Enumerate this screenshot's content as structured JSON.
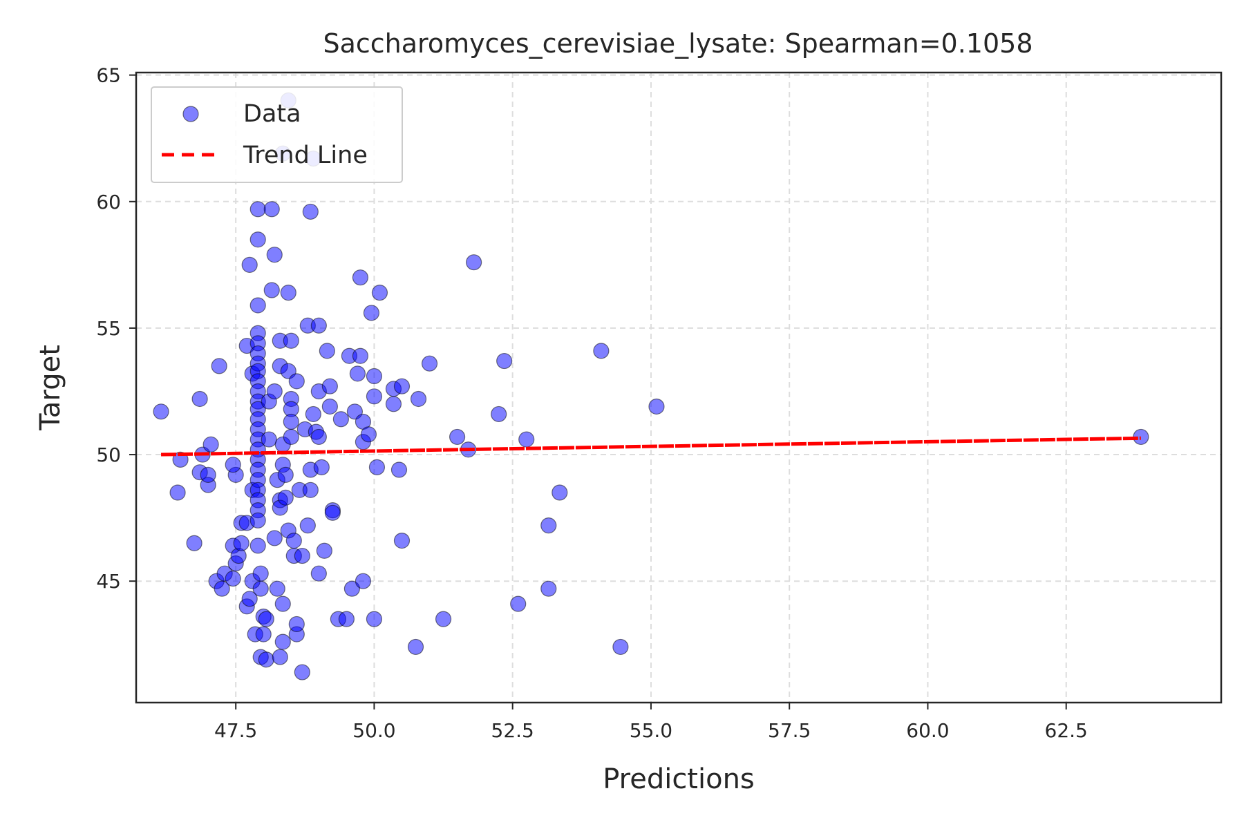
{
  "chart_data": {
    "type": "scatter",
    "title": "Saccharomyces_cerevisiae_lysate: Spearman=0.1058",
    "xlabel": "Predictions",
    "ylabel": "Target",
    "xlim": [
      45.7,
      65.3
    ],
    "ylim": [
      40.2,
      65.1
    ],
    "x_ticks": [
      "47.5",
      "50.0",
      "52.5",
      "55.0",
      "57.5",
      "60.0",
      "62.5"
    ],
    "y_ticks": [
      "45",
      "50",
      "55",
      "60",
      "65"
    ],
    "grid": true,
    "legend_position": "top-left",
    "legend": [
      "Data",
      "Trend Line"
    ],
    "colors": {
      "points": "#0000ff",
      "point_edge": "#000000",
      "trend_line": "#ff0000",
      "grid": "#dddddd",
      "axes": "#262626"
    },
    "trend_line": {
      "x": [
        46.15,
        63.85
      ],
      "y": [
        50.0,
        50.65
      ],
      "style": "dashed"
    },
    "series": [
      {
        "name": "Data",
        "points": [
          [
            46.15,
            51.7
          ],
          [
            46.5,
            49.8
          ],
          [
            46.45,
            48.5
          ],
          [
            46.75,
            46.5
          ],
          [
            46.85,
            52.2
          ],
          [
            46.9,
            50.0
          ],
          [
            46.85,
            49.3
          ],
          [
            47.0,
            48.8
          ],
          [
            47.0,
            49.2
          ],
          [
            47.05,
            50.4
          ],
          [
            47.15,
            45.0
          ],
          [
            47.2,
            53.5
          ],
          [
            47.25,
            44.7
          ],
          [
            47.3,
            45.3
          ],
          [
            47.45,
            45.1
          ],
          [
            47.45,
            46.4
          ],
          [
            47.5,
            45.7
          ],
          [
            47.5,
            49.2
          ],
          [
            47.45,
            49.6
          ],
          [
            47.55,
            46.0
          ],
          [
            47.6,
            47.3
          ],
          [
            47.6,
            46.5
          ],
          [
            47.7,
            47.3
          ],
          [
            47.7,
            44.0
          ],
          [
            47.75,
            44.3
          ],
          [
            47.75,
            57.5
          ],
          [
            47.7,
            54.3
          ],
          [
            47.8,
            53.2
          ],
          [
            47.8,
            45.0
          ],
          [
            47.8,
            48.6
          ],
          [
            47.85,
            42.9
          ],
          [
            47.9,
            59.7
          ],
          [
            47.9,
            58.5
          ],
          [
            47.9,
            55.9
          ],
          [
            47.9,
            54.8
          ],
          [
            47.9,
            54.4
          ],
          [
            47.9,
            54.0
          ],
          [
            47.9,
            53.6
          ],
          [
            47.9,
            53.3
          ],
          [
            47.9,
            52.9
          ],
          [
            47.9,
            52.5
          ],
          [
            47.9,
            52.1
          ],
          [
            47.9,
            51.8
          ],
          [
            47.9,
            51.4
          ],
          [
            47.9,
            51.0
          ],
          [
            47.9,
            50.6
          ],
          [
            47.9,
            50.2
          ],
          [
            47.9,
            49.8
          ],
          [
            47.9,
            49.4
          ],
          [
            47.9,
            49.0
          ],
          [
            47.9,
            48.6
          ],
          [
            47.9,
            48.2
          ],
          [
            47.9,
            47.8
          ],
          [
            47.9,
            47.4
          ],
          [
            47.9,
            46.4
          ],
          [
            47.95,
            45.3
          ],
          [
            47.95,
            44.7
          ],
          [
            47.95,
            42.0
          ],
          [
            48.0,
            43.6
          ],
          [
            48.0,
            42.9
          ],
          [
            48.05,
            41.9
          ],
          [
            48.05,
            43.5
          ],
          [
            48.1,
            52.1
          ],
          [
            48.1,
            50.6
          ],
          [
            48.15,
            59.7
          ],
          [
            48.15,
            56.5
          ],
          [
            48.2,
            57.9
          ],
          [
            48.2,
            52.5
          ],
          [
            48.2,
            46.7
          ],
          [
            48.25,
            44.7
          ],
          [
            48.25,
            49.0
          ],
          [
            48.3,
            48.2
          ],
          [
            48.3,
            47.9
          ],
          [
            48.3,
            42.0
          ],
          [
            48.3,
            53.5
          ],
          [
            48.3,
            54.5
          ],
          [
            48.35,
            50.4
          ],
          [
            48.35,
            49.6
          ],
          [
            48.35,
            42.6
          ],
          [
            48.35,
            44.1
          ],
          [
            48.4,
            48.3
          ],
          [
            48.4,
            49.2
          ],
          [
            48.45,
            56.4
          ],
          [
            48.45,
            53.3
          ],
          [
            48.45,
            47.0
          ],
          [
            48.5,
            54.5
          ],
          [
            48.5,
            52.2
          ],
          [
            48.5,
            51.8
          ],
          [
            48.5,
            51.3
          ],
          [
            48.5,
            50.7
          ],
          [
            48.55,
            46.6
          ],
          [
            48.55,
            46.0
          ],
          [
            48.6,
            42.9
          ],
          [
            48.6,
            43.3
          ],
          [
            48.6,
            52.9
          ],
          [
            48.65,
            48.6
          ],
          [
            48.7,
            46.0
          ],
          [
            48.7,
            41.4
          ],
          [
            48.75,
            51.0
          ],
          [
            48.8,
            55.1
          ],
          [
            48.8,
            47.2
          ],
          [
            48.85,
            59.6
          ],
          [
            48.85,
            49.4
          ],
          [
            48.85,
            48.6
          ],
          [
            48.9,
            51.6
          ],
          [
            48.95,
            50.9
          ],
          [
            49.0,
            50.7
          ],
          [
            49.0,
            45.3
          ],
          [
            49.0,
            55.1
          ],
          [
            49.0,
            52.5
          ],
          [
            49.05,
            49.5
          ],
          [
            49.1,
            46.2
          ],
          [
            49.15,
            54.1
          ],
          [
            49.2,
            52.7
          ],
          [
            49.2,
            51.9
          ],
          [
            49.25,
            47.8
          ],
          [
            49.25,
            47.7
          ],
          [
            49.35,
            43.5
          ],
          [
            49.4,
            51.4
          ],
          [
            49.5,
            43.5
          ],
          [
            49.55,
            53.9
          ],
          [
            49.6,
            44.7
          ],
          [
            49.65,
            51.7
          ],
          [
            49.7,
            53.2
          ],
          [
            49.75,
            57.0
          ],
          [
            49.75,
            53.9
          ],
          [
            49.8,
            51.3
          ],
          [
            49.8,
            50.5
          ],
          [
            49.8,
            45.0
          ],
          [
            49.9,
            50.8
          ],
          [
            49.95,
            55.6
          ],
          [
            50.0,
            53.1
          ],
          [
            50.0,
            52.3
          ],
          [
            50.0,
            43.5
          ],
          [
            50.05,
            49.5
          ],
          [
            50.1,
            56.4
          ],
          [
            50.35,
            52.6
          ],
          [
            50.35,
            52.0
          ],
          [
            50.45,
            49.4
          ],
          [
            50.5,
            52.7
          ],
          [
            50.5,
            46.6
          ],
          [
            50.75,
            42.4
          ],
          [
            50.8,
            52.2
          ],
          [
            51.0,
            53.6
          ],
          [
            51.25,
            43.5
          ],
          [
            51.5,
            50.7
          ],
          [
            51.7,
            50.2
          ],
          [
            51.8,
            57.6
          ],
          [
            52.25,
            51.6
          ],
          [
            52.35,
            53.7
          ],
          [
            52.6,
            44.1
          ],
          [
            52.75,
            50.6
          ],
          [
            53.15,
            44.7
          ],
          [
            53.15,
            47.2
          ],
          [
            53.35,
            48.5
          ],
          [
            54.1,
            54.1
          ],
          [
            54.45,
            42.4
          ],
          [
            55.1,
            51.9
          ],
          [
            63.85,
            50.7
          ],
          [
            48.45,
            64.0
          ],
          [
            48.35,
            61.9
          ],
          [
            48.9,
            61.7
          ]
        ]
      }
    ]
  }
}
